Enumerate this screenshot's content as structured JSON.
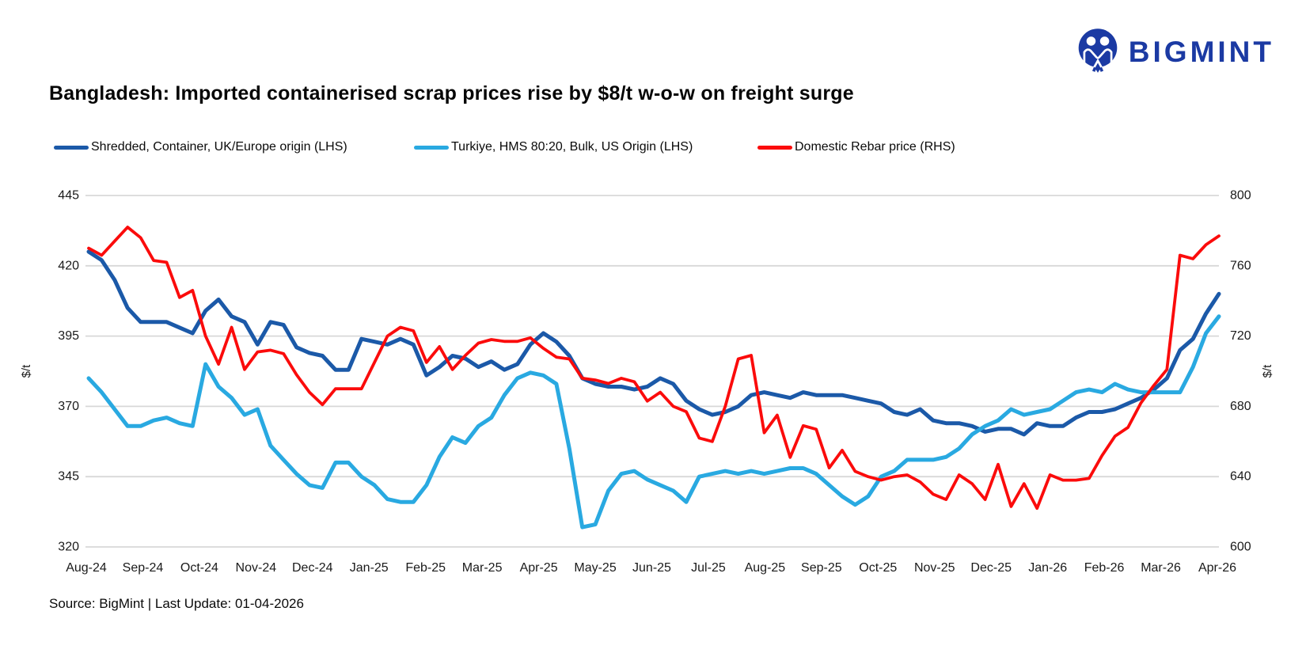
{
  "logo": {
    "text": "BIGMINT",
    "color": "#1b3aa3"
  },
  "title": "Bangladesh: Imported containerised scrap prices rise by $8/t w-o-w on freight surge",
  "source": "Source: BigMint | Last Update: 01-04-2026",
  "legend": [
    {
      "label": "Shredded, Container, UK/Europe origin (LHS)",
      "color": "#1b59a8"
    },
    {
      "label": "Turkiye, HMS 80:20, Bulk, US Origin (LHS)",
      "color": "#29a9e1"
    },
    {
      "label": "Domestic Rebar price (RHS)",
      "color": "#fb0b0b"
    }
  ],
  "chart_data": {
    "type": "line",
    "title": "Bangladesh: Imported containerised scrap prices rise by $8/t w-o-w on freight surge",
    "frequency": "weekly",
    "grid": true,
    "x_labels": [
      "Aug-24",
      "Sep-24",
      "Oct-24",
      "Nov-24",
      "Dec-24",
      "Jan-25",
      "Feb-25",
      "Mar-25",
      "Apr-25",
      "May-25",
      "Jun-25",
      "Jul-25",
      "Aug-25",
      "Sep-25",
      "Oct-25",
      "Nov-25",
      "Dec-25",
      "Jan-26",
      "Feb-26",
      "Mar-26",
      "Apr-26"
    ],
    "left_axis": {
      "label": "$/t",
      "min": 320,
      "max": 445,
      "ticks": [
        445,
        420,
        395,
        370,
        345,
        320
      ]
    },
    "right_axis": {
      "label": "$/t",
      "min": 600,
      "max": 800,
      "ticks": [
        800,
        760,
        720,
        680,
        640,
        600
      ]
    },
    "series": [
      {
        "name": "Shredded, Container, UK/Europe origin (LHS)",
        "axis": "left",
        "color": "#1b59a8",
        "width": 5,
        "values": [
          425,
          422,
          415,
          405,
          400,
          400,
          400,
          398,
          396,
          404,
          408,
          402,
          400,
          392,
          400,
          399,
          391,
          389,
          388,
          383,
          383,
          394,
          393,
          392,
          394,
          392,
          381,
          384,
          388,
          387,
          384,
          386,
          383,
          385,
          392,
          396,
          393,
          388,
          380,
          378,
          377,
          377,
          376,
          377,
          380,
          378,
          372,
          369,
          367,
          368,
          370,
          374,
          375,
          374,
          373,
          375,
          374,
          374,
          374,
          373,
          372,
          371,
          368,
          367,
          369,
          365,
          364,
          364,
          363,
          361,
          362,
          362,
          360,
          364,
          363,
          363,
          366,
          368,
          368,
          369,
          371,
          373,
          376,
          380,
          390,
          394,
          403,
          410
        ]
      },
      {
        "name": "Turkiye, HMS 80:20, Bulk, US Origin (LHS)",
        "axis": "left",
        "color": "#29a9e1",
        "width": 5,
        "values": [
          380,
          375,
          369,
          363,
          363,
          365,
          366,
          364,
          363,
          385,
          377,
          373,
          367,
          369,
          356,
          351,
          346,
          342,
          341,
          350,
          350,
          345,
          342,
          337,
          336,
          336,
          342,
          352,
          359,
          357,
          363,
          366,
          374,
          380,
          382,
          381,
          378,
          355,
          327,
          328,
          340,
          346,
          347,
          344,
          342,
          340,
          336,
          345,
          346,
          347,
          346,
          347,
          346,
          347,
          348,
          348,
          346,
          342,
          338,
          335,
          338,
          345,
          347,
          351,
          351,
          351,
          352,
          355,
          360,
          363,
          365,
          369,
          367,
          368,
          369,
          372,
          375,
          376,
          375,
          378,
          376,
          375,
          375,
          375,
          375,
          384,
          396,
          402
        ]
      },
      {
        "name": "Domestic Rebar price (RHS)",
        "axis": "right",
        "color": "#fb0b0b",
        "width": 3.8,
        "values": [
          770,
          766,
          774,
          782,
          776,
          763,
          762,
          742,
          746,
          720,
          704,
          725,
          701,
          711,
          712,
          710,
          698,
          688,
          681,
          690,
          690,
          690,
          705,
          720,
          725,
          723,
          705,
          714,
          701,
          709,
          716,
          718,
          717,
          717,
          719,
          713,
          708,
          707,
          696,
          695,
          693,
          696,
          694,
          683,
          688,
          680,
          677,
          662,
          660,
          680,
          707,
          709,
          665,
          675,
          651,
          669,
          667,
          645,
          655,
          643,
          640,
          638,
          640,
          641,
          637,
          630,
          627,
          641,
          636,
          627,
          647,
          623,
          636,
          622,
          641,
          638,
          638,
          639,
          652,
          663,
          668,
          682,
          692,
          701,
          766,
          764,
          772,
          777
        ]
      }
    ]
  }
}
